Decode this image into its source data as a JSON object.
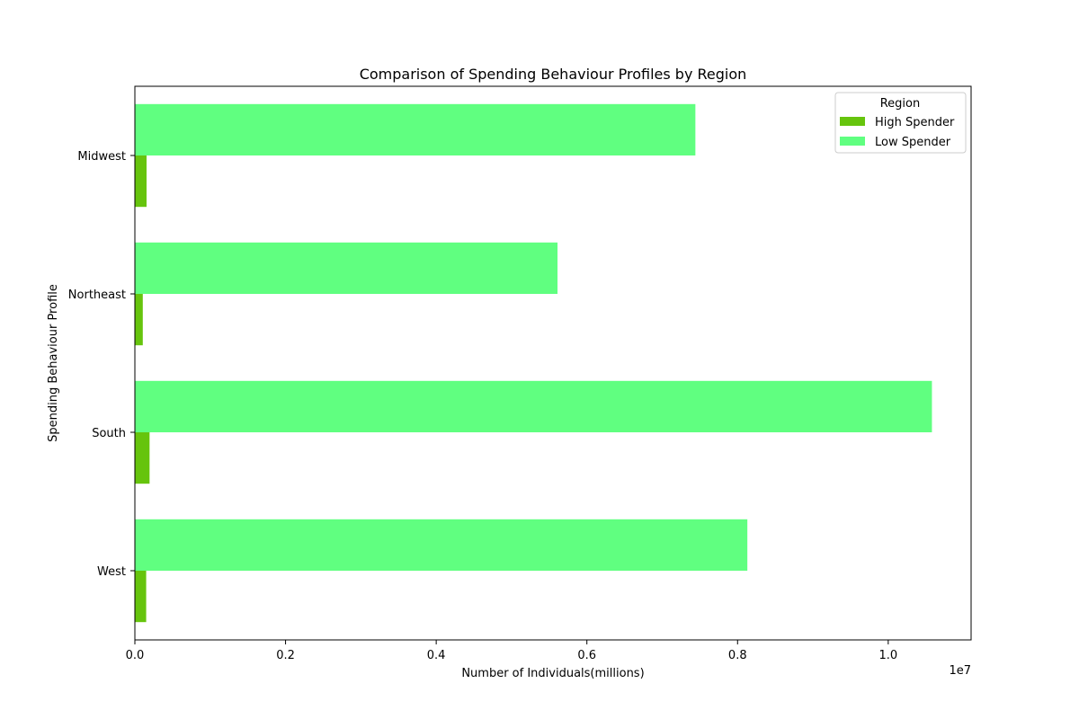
{
  "chart_data": {
    "type": "bar",
    "orientation": "horizontal",
    "title": "Comparison of Spending Behaviour Profiles by Region",
    "xlabel": "Number of Individuals(millions)",
    "ylabel": "Spending Behaviour Profile",
    "x_offset_text": "1e7",
    "xlim": [
      0,
      11100000
    ],
    "x_tick_values": [
      0,
      2000000,
      4000000,
      6000000,
      8000000,
      10000000
    ],
    "x_tick_labels": [
      "0.0",
      "0.2",
      "0.4",
      "0.6",
      "0.8",
      "1.0"
    ],
    "categories": [
      "West",
      "South",
      "Northeast",
      "Midwest"
    ],
    "series": [
      {
        "name": "High Spender",
        "color": "#66c40d",
        "values": [
          150000,
          195000,
          105000,
          155000
        ]
      },
      {
        "name": "Low Spender",
        "color": "#60ff80",
        "values": [
          8130000,
          10580000,
          5610000,
          7440000
        ]
      }
    ],
    "legend": {
      "title": "Region",
      "placement": "top-right"
    },
    "grid": false
  }
}
